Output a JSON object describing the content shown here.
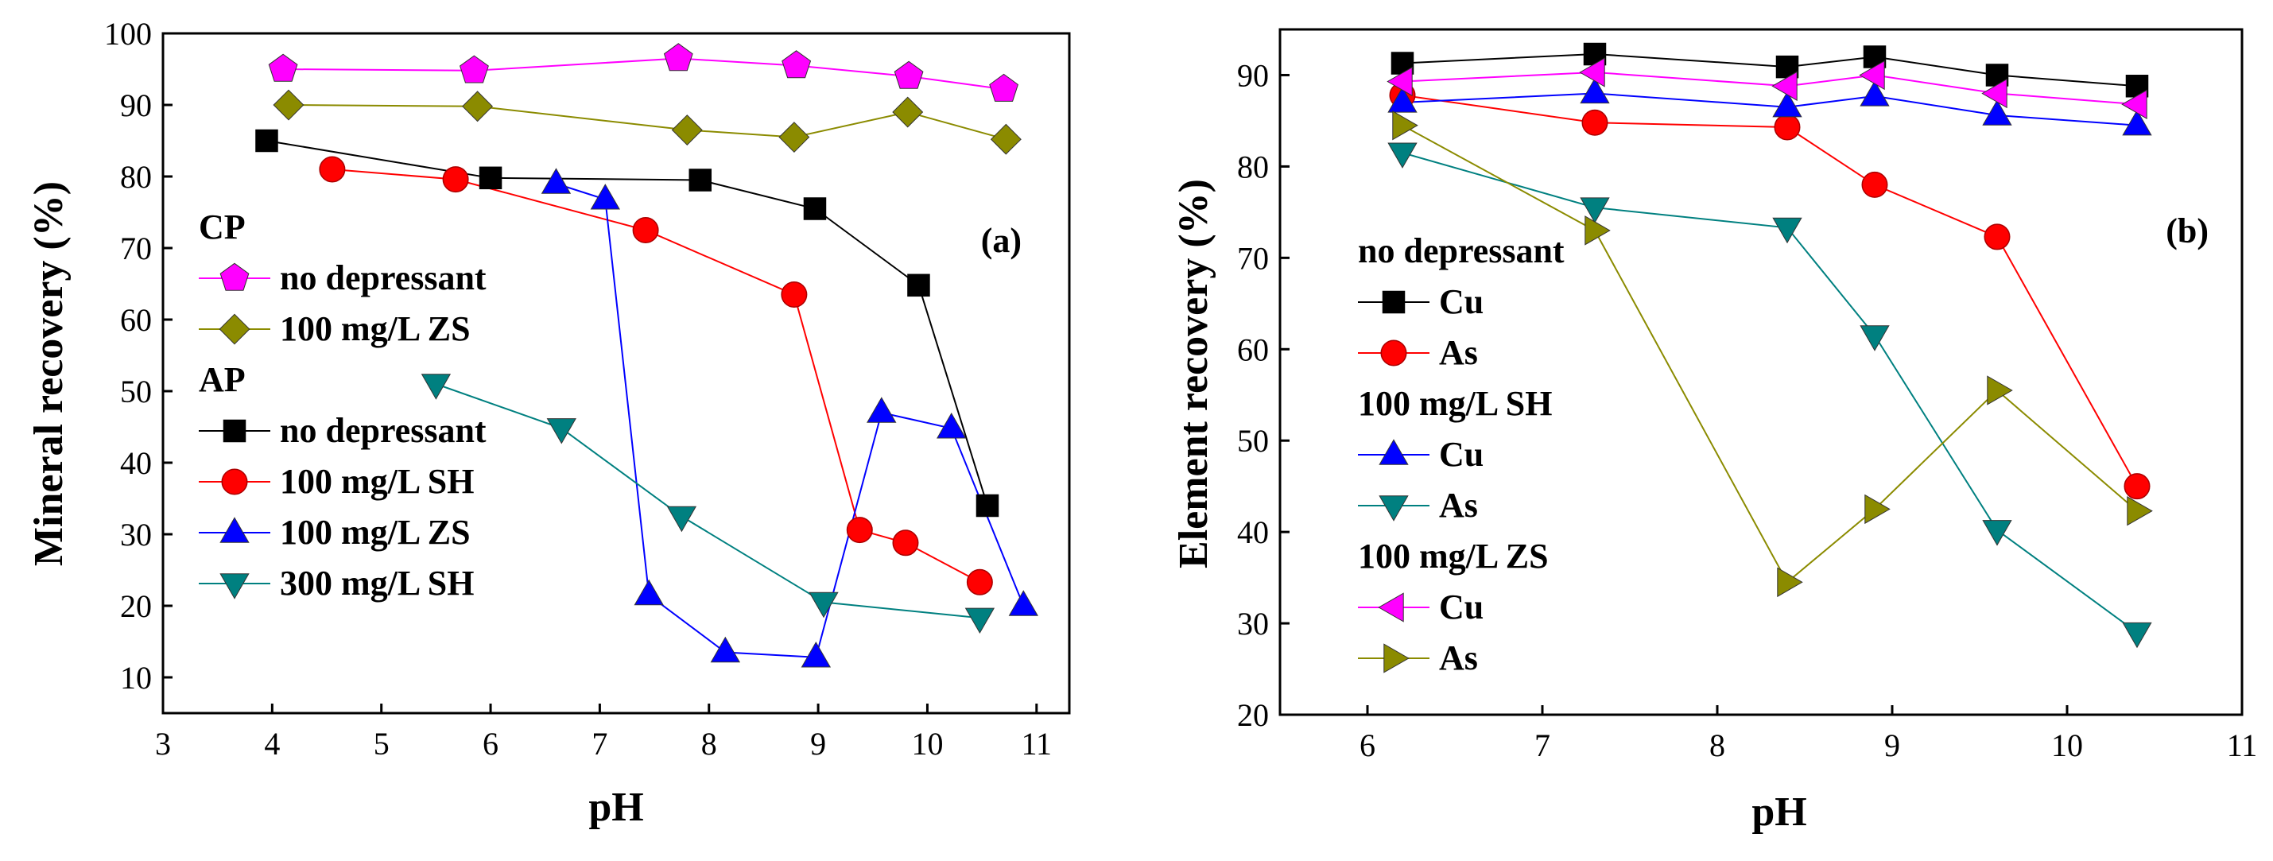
{
  "chart_data": [
    {
      "type": "line",
      "panel_label": "(a)",
      "xlabel": "pH",
      "ylabel": "Mineral recovery (%)",
      "xlim": [
        3,
        11.3
      ],
      "ylim": [
        5,
        100
      ],
      "x_ticks": [
        3,
        4,
        5,
        6,
        7,
        8,
        9,
        10,
        11
      ],
      "y_ticks": [
        10,
        20,
        30,
        40,
        50,
        60,
        70,
        80,
        90,
        100
      ],
      "grid": false,
      "legend_groups": [
        {
          "title": "CP",
          "series": [
            "no depressant",
            "100 mg/L ZS"
          ]
        },
        {
          "title": "AP",
          "series": [
            "no depressant",
            "100 mg/L SH",
            "100 mg/L ZS",
            "300 mg/L  SH"
          ]
        }
      ],
      "series": [
        {
          "name": "no depressant",
          "group": "CP",
          "marker": "pentagon",
          "color": "#ff00ff",
          "stroke": "#ff00ff",
          "x": [
            4.1,
            5.85,
            7.72,
            8.8,
            9.83,
            10.7
          ],
          "y": [
            95,
            94.8,
            96.5,
            95.5,
            94,
            92.2
          ]
        },
        {
          "name": "100 mg/L ZS",
          "group": "CP",
          "marker": "diamond",
          "color": "#8b8b00",
          "stroke": "#8b8b00",
          "x": [
            4.15,
            5.88,
            7.8,
            8.78,
            9.82,
            10.72
          ],
          "y": [
            90,
            89.8,
            86.5,
            85.5,
            89,
            85.2
          ]
        },
        {
          "name": "no depressant",
          "group": "AP",
          "marker": "square",
          "color": "#000000",
          "stroke": "#000000",
          "x": [
            3.95,
            6.0,
            7.92,
            8.97,
            9.92,
            10.55
          ],
          "y": [
            85,
            79.8,
            79.5,
            75.5,
            64.8,
            34
          ]
        },
        {
          "name": "100 mg/L SH",
          "group": "AP",
          "marker": "circle",
          "color": "#ff0000",
          "stroke": "#ff0000",
          "x": [
            4.55,
            5.68,
            7.42,
            8.78,
            9.38,
            9.8,
            10.48
          ],
          "y": [
            81,
            79.6,
            72.5,
            63.5,
            30.6,
            28.8,
            23.3
          ]
        },
        {
          "name": "100 mg/L ZS",
          "group": "AP",
          "marker": "triangle-up",
          "color": "#0000ff",
          "stroke": "#0000ff",
          "x": [
            6.6,
            7.05,
            7.45,
            8.15,
            8.98,
            9.58,
            10.22,
            10.88
          ],
          "y": [
            79,
            76.8,
            21.5,
            13.5,
            12.8,
            47,
            44.8,
            20
          ]
        },
        {
          "name": "300 mg/L  SH",
          "group": "AP",
          "marker": "triangle-down",
          "color": "#008080",
          "stroke": "#008080",
          "x": [
            5.5,
            6.65,
            7.75,
            9.05,
            10.48
          ],
          "y": [
            51,
            44.8,
            32.5,
            20.5,
            18.3
          ]
        }
      ]
    },
    {
      "type": "line",
      "panel_label": "(b)",
      "xlabel": "pH",
      "ylabel": "Element recovery (%)",
      "xlim": [
        5.5,
        11
      ],
      "ylim": [
        20,
        95
      ],
      "x_ticks": [
        6,
        7,
        8,
        9,
        10,
        11
      ],
      "y_ticks": [
        20,
        30,
        40,
        50,
        60,
        70,
        80,
        90
      ],
      "grid": false,
      "legend_groups": [
        {
          "title": "no depressant",
          "series": [
            "Cu",
            "As"
          ]
        },
        {
          "title": "100 mg/L SH",
          "series": [
            "Cu",
            "As"
          ]
        },
        {
          "title": "100 mg/L ZS",
          "series": [
            "Cu",
            "As"
          ]
        }
      ],
      "series": [
        {
          "name": "Cu",
          "group": "no depressant",
          "marker": "square",
          "color": "#000000",
          "stroke": "#000000",
          "x": [
            6.2,
            7.3,
            8.4,
            8.9,
            9.6,
            10.4
          ],
          "y": [
            91.3,
            92.3,
            90.9,
            92,
            90,
            88.8
          ]
        },
        {
          "name": "As",
          "group": "no depressant",
          "marker": "circle",
          "color": "#ff0000",
          "stroke": "#ff0000",
          "x": [
            6.2,
            7.3,
            8.4,
            8.9,
            9.6,
            10.4
          ],
          "y": [
            87.8,
            84.8,
            84.3,
            78,
            72.3,
            45
          ]
        },
        {
          "name": "Cu",
          "group": "100 mg/L SH",
          "marker": "triangle-up",
          "color": "#0000ff",
          "stroke": "#0000ff",
          "x": [
            6.2,
            7.3,
            8.4,
            8.9,
            9.6,
            10.4
          ],
          "y": [
            87,
            88,
            86.5,
            87.7,
            85.6,
            84.5
          ]
        },
        {
          "name": "As",
          "group": "100 mg/L SH",
          "marker": "triangle-down",
          "color": "#008080",
          "stroke": "#008080",
          "x": [
            6.2,
            7.3,
            8.4,
            8.9,
            9.6,
            10.4
          ],
          "y": [
            81.5,
            75.5,
            73.3,
            61.5,
            40.2,
            29
          ]
        },
        {
          "name": "Cu",
          "group": "100 mg/L ZS",
          "marker": "triangle-left",
          "color": "#ff00ff",
          "stroke": "#ff00ff",
          "x": [
            6.2,
            7.3,
            8.4,
            8.9,
            9.6,
            10.4
          ],
          "y": [
            89.3,
            90.3,
            88.8,
            90,
            88,
            86.8
          ]
        },
        {
          "name": "As",
          "group": "100 mg/L ZS",
          "marker": "triangle-right",
          "color": "#8b8b00",
          "stroke": "#8b8b00",
          "x": [
            6.2,
            7.3,
            8.4,
            8.9,
            9.6,
            10.4
          ],
          "y": [
            84.5,
            73,
            34.5,
            42.5,
            55.5,
            42.3
          ]
        }
      ]
    }
  ]
}
